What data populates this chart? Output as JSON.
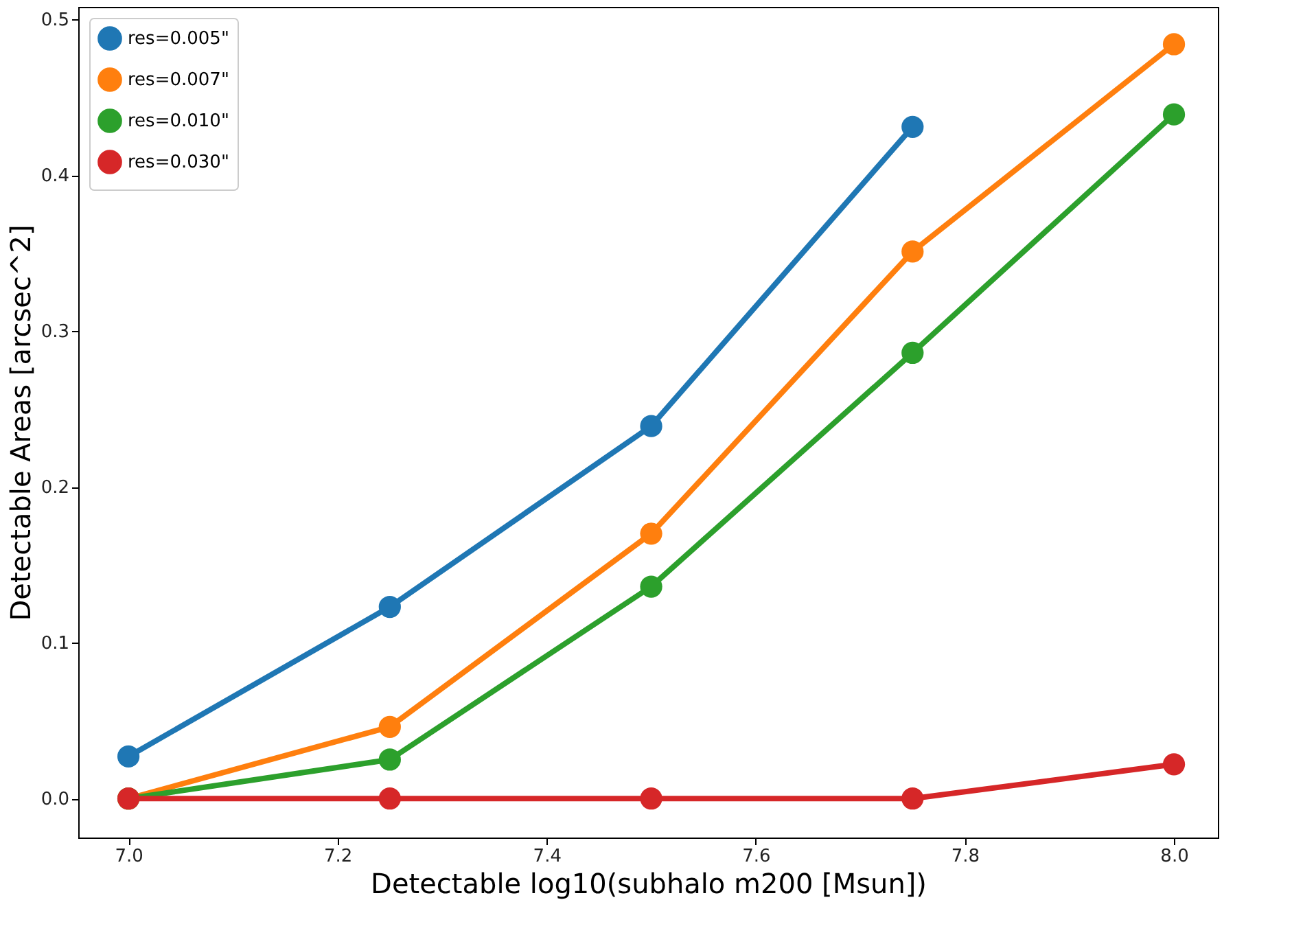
{
  "chart_data": {
    "type": "line",
    "xlabel": "Detectable log10(subhalo m200 [Msun])",
    "ylabel": "Detectable Areas [arcsec^2]",
    "x": [
      7.0,
      7.25,
      7.5,
      7.75,
      8.0
    ],
    "series": [
      {
        "name": "res=0.005\"",
        "color": "#1f77b4",
        "values": [
          0.027,
          0.123,
          0.239,
          0.431,
          null
        ]
      },
      {
        "name": "res=0.007\"",
        "color": "#ff7f0e",
        "values": [
          0.0,
          0.046,
          0.17,
          0.351,
          0.484
        ]
      },
      {
        "name": "res=0.010\"",
        "color": "#2ca02c",
        "values": [
          0.0,
          0.025,
          0.136,
          0.286,
          0.439
        ]
      },
      {
        "name": "res=0.030\"",
        "color": "#d62728",
        "values": [
          0.0,
          0.0,
          0.0,
          0.0,
          0.022
        ]
      }
    ],
    "xlim": [
      6.952,
      8.042
    ],
    "ylim": [
      -0.025,
      0.508
    ],
    "xticks": [
      {
        "value": 7.0,
        "label": "7.0"
      },
      {
        "value": 7.2,
        "label": "7.2"
      },
      {
        "value": 7.4,
        "label": "7.4"
      },
      {
        "value": 7.6,
        "label": "7.6"
      },
      {
        "value": 7.8,
        "label": "7.8"
      },
      {
        "value": 8.0,
        "label": "8.0"
      }
    ],
    "yticks": [
      {
        "value": 0.0,
        "label": "0.0"
      },
      {
        "value": 0.1,
        "label": "0.1"
      },
      {
        "value": 0.2,
        "label": "0.2"
      },
      {
        "value": 0.3,
        "label": "0.3"
      },
      {
        "value": 0.4,
        "label": "0.4"
      },
      {
        "value": 0.5,
        "label": "0.5"
      }
    ],
    "grid": false,
    "legend": "top left",
    "marker": "circle",
    "line_style": "solid"
  }
}
